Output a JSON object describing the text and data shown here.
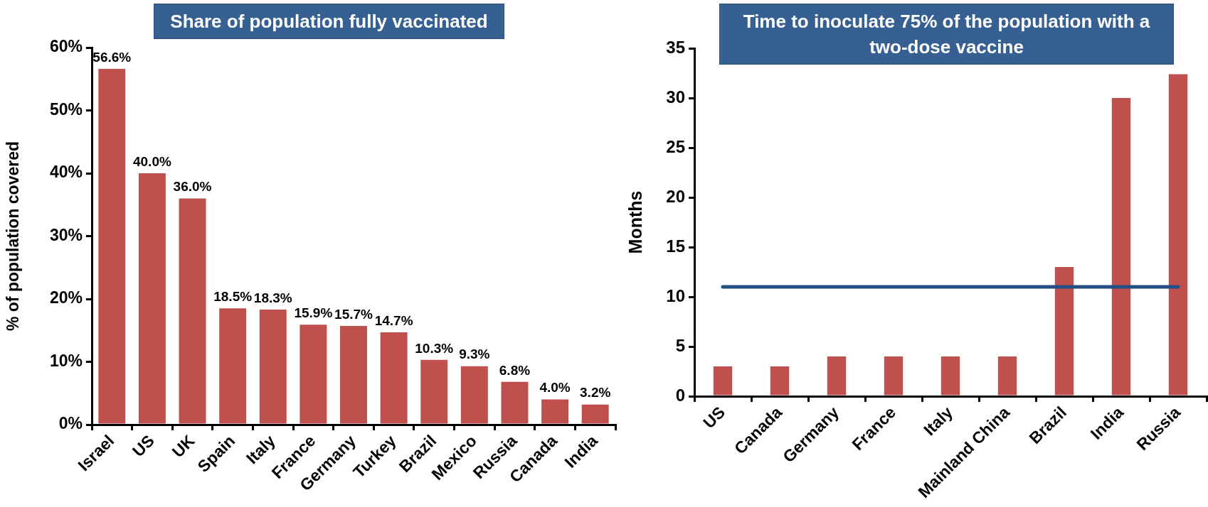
{
  "chart_data": [
    {
      "type": "bar",
      "title": "Share of population fully vaccinated",
      "ylabel": "% of population covered",
      "categories": [
        "Israel",
        "US",
        "UK",
        "Spain",
        "Italy",
        "France",
        "Germany",
        "Turkey",
        "Brazil",
        "Mexico",
        "Russia",
        "Canada",
        "India"
      ],
      "values": [
        56.6,
        40.0,
        36.0,
        18.5,
        18.3,
        15.9,
        15.7,
        14.7,
        10.3,
        9.3,
        6.8,
        4.0,
        3.2
      ],
      "value_labels": [
        "56.6%",
        "40.0%",
        "36.0%",
        "18.5%",
        "18.3%",
        "15.9%",
        "15.7%",
        "14.7%",
        "10.3%",
        "9.3%",
        "6.8%",
        "4.0%",
        "3.2%"
      ],
      "color": "#c0504d",
      "ylim": [
        0,
        60
      ],
      "yticks": [
        {
          "value": 0,
          "label": "0%"
        },
        {
          "value": 10,
          "label": "10%"
        },
        {
          "value": 20,
          "label": "20%"
        },
        {
          "value": 30,
          "label": "30%"
        },
        {
          "value": 40,
          "label": "40%"
        },
        {
          "value": 50,
          "label": "50%"
        },
        {
          "value": 60,
          "label": "60%"
        }
      ]
    },
    {
      "type": "bar",
      "title": "Time to inoculate 75% of the population with a two-dose vaccine",
      "ylabel": "Months",
      "categories": [
        "US",
        "Canada",
        "Germany",
        "France",
        "Italy",
        "Mainland China",
        "Brazil",
        "India",
        "Russia"
      ],
      "series": [
        {
          "type": "bar",
          "color": "#c0504d",
          "values": [
            3,
            3,
            4,
            4,
            4,
            4,
            13,
            30,
            32.4
          ]
        },
        {
          "type": "line",
          "color": "#264f87",
          "values": [
            11,
            11,
            11,
            11,
            11,
            11,
            11,
            11,
            11
          ]
        }
      ],
      "ylim": [
        0,
        35
      ],
      "yticks": [
        0,
        5,
        10,
        15,
        20,
        25,
        30,
        35
      ]
    }
  ]
}
